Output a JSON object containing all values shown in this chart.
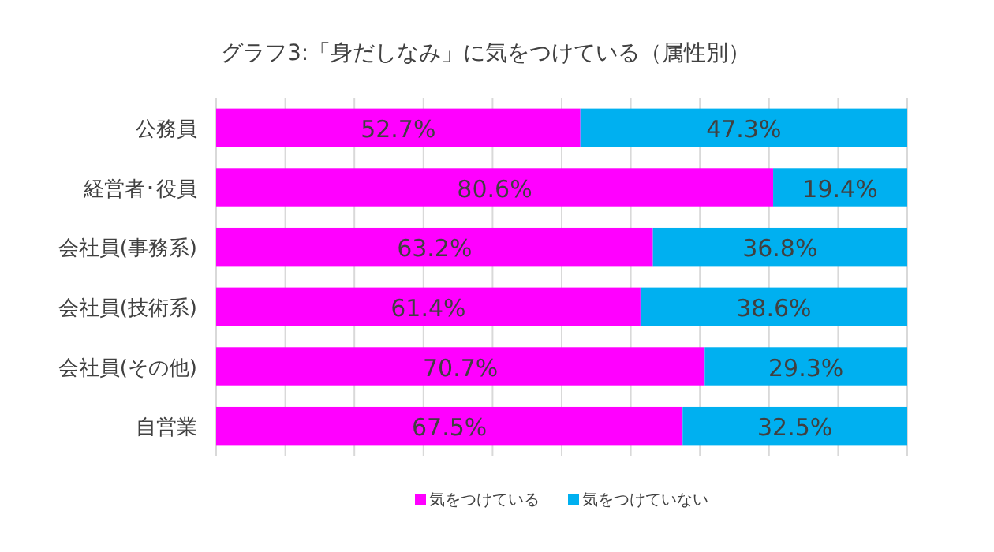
{
  "chart_data": {
    "type": "bar",
    "orientation": "horizontal",
    "stacked": true,
    "title": "グラフ3:「身だしなみ」に気をつけている（属性別）",
    "categories": [
      "公務員",
      "経営者･役員",
      "会社員(事務系)",
      "会社員(技術系)",
      "会社員(その他)",
      "自営業"
    ],
    "series": [
      {
        "name": "気をつけている",
        "color": "#ff00ff",
        "values": [
          52.7,
          80.6,
          63.2,
          61.4,
          70.7,
          67.5
        ],
        "value_labels": [
          "52.7%",
          "80.6%",
          "63.2%",
          "61.4%",
          "70.7%",
          "67.5%"
        ]
      },
      {
        "name": "気をつけていない",
        "color": "#00b0f0",
        "values": [
          47.3,
          19.4,
          36.8,
          38.6,
          29.3,
          32.5
        ],
        "value_labels": [
          "47.3%",
          "19.4%",
          "36.8%",
          "38.6%",
          "29.3%",
          "32.5%"
        ]
      }
    ],
    "xlim": [
      0,
      100
    ],
    "xticks": [
      {
        "value": 0,
        "label": null
      },
      {
        "value": 10,
        "label": null
      },
      {
        "value": 20,
        "label": null
      },
      {
        "value": 30,
        "label": null
      },
      {
        "value": 40,
        "label": null
      },
      {
        "value": 50,
        "label": null
      },
      {
        "value": 60,
        "label": null
      },
      {
        "value": 70,
        "label": null
      },
      {
        "value": 80,
        "label": null
      },
      {
        "value": 90,
        "label": null
      },
      {
        "value": 100,
        "label": null
      }
    ],
    "grid": "x",
    "tick_labels": "y",
    "legend": "bottom"
  }
}
